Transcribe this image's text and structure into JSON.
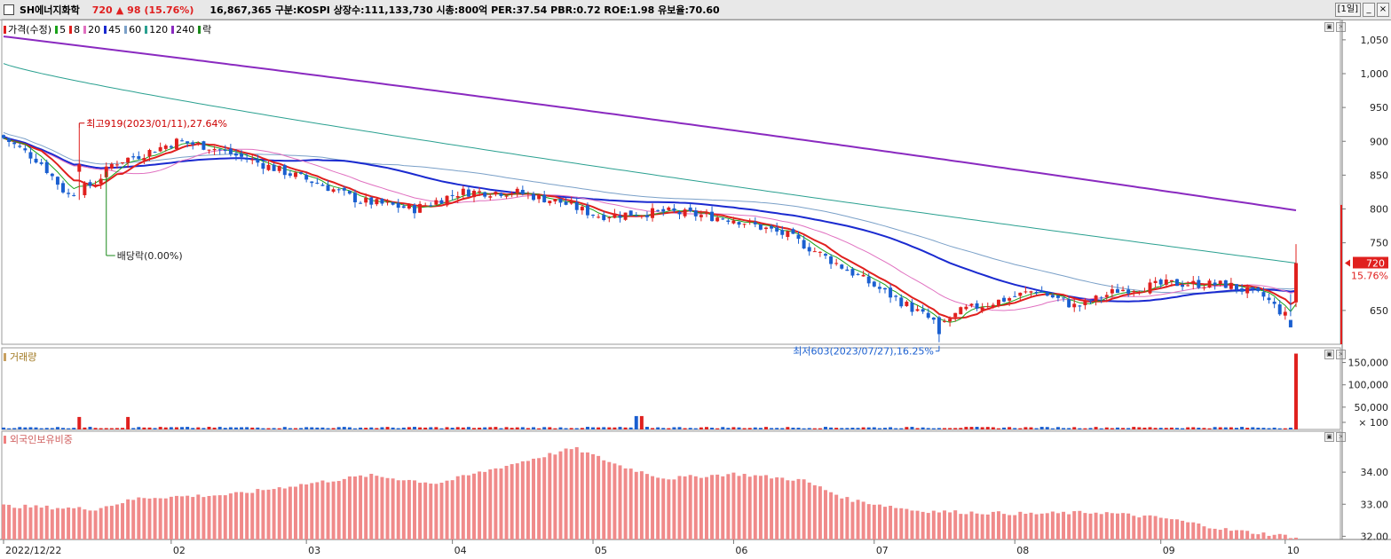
{
  "header": {
    "name": "SH에너지화학",
    "price": "720",
    "change": "98",
    "rate": "(15.76%)",
    "info": "16,867,365  구분:KOSPI  상장수:111,133,730  시총:800억  PER:37.54  PBR:0.72  ROE:1.98  유보율:70.60",
    "period_label": "[1일]",
    "min_btn": "_",
    "close_btn": "×"
  },
  "price_panel": {
    "legend": [
      {
        "label": "가격(수정)",
        "color": "#e0201e"
      },
      {
        "label": "5",
        "color": "#1aa31a"
      },
      {
        "label": "8",
        "color": "#e0201e"
      },
      {
        "label": "20",
        "color": "#e070c0"
      },
      {
        "label": "45",
        "color": "#1a2ad0"
      },
      {
        "label": "60",
        "color": "#7aa0c8"
      },
      {
        "label": "120",
        "color": "#2aa090"
      },
      {
        "label": "240",
        "color": "#8a2ac0"
      },
      {
        "label": "락",
        "color": "#1a8a1a"
      }
    ],
    "y_ticks": [
      "1,050",
      "1,000",
      "950",
      "900",
      "850",
      "800",
      "750",
      "650"
    ],
    "high_label": "최고919(2023/01/11),27.64%",
    "low_label": "최저603(2023/07/27),16.25%",
    "dividend_label": "배당락(0.00%)",
    "current_price": "720",
    "current_rate": "15.76%"
  },
  "volume_panel": {
    "title": "거래량",
    "y_ticks": [
      "150,000",
      "100,000",
      "50,000",
      "× 100"
    ]
  },
  "foreign_panel": {
    "title": "외국인보유비중",
    "y_ticks": [
      "34.00",
      "33.00",
      "32.00"
    ]
  },
  "x_axis": {
    "labels": [
      "2022/12/22",
      "02",
      "03",
      "04",
      "05",
      "06",
      "07",
      "08",
      "09",
      "10"
    ]
  },
  "chart_data": {
    "type": "candlestick",
    "price_range": [
      600,
      1080
    ],
    "closes_sample": [
      {
        "date": "2022/12/22",
        "close": 905
      },
      {
        "date": "2023/01/11",
        "close": 860,
        "high": 919
      },
      {
        "date": "2023/02",
        "close": 890
      },
      {
        "date": "2023/03",
        "close": 850
      },
      {
        "date": "2023/04",
        "close": 830
      },
      {
        "date": "2023/05",
        "close": 820
      },
      {
        "date": "2023/06",
        "close": 785
      },
      {
        "date": "2023/07/27",
        "close": 615,
        "low": 603
      },
      {
        "date": "2023/08",
        "close": 665
      },
      {
        "date": "2023/09",
        "close": 690
      },
      {
        "date": "2023/10",
        "close": 720
      }
    ],
    "ma_240_range": [
      1055,
      798
    ],
    "ma_120_range": [
      1015,
      720
    ],
    "volume_range": [
      0,
      175000
    ],
    "volume_last": 170000,
    "foreign_ratio_range": [
      31.9,
      35.0
    ],
    "foreign_ratio_peak": 34.75,
    "foreign_ratio_last": 31.98
  }
}
